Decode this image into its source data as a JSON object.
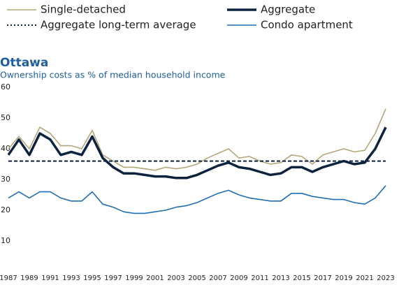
{
  "chart_data": {
    "type": "line",
    "title": "Ottawa",
    "subtitle": "Ownership costs as % of median household income",
    "x": [
      1987,
      1988,
      1989,
      1990,
      1991,
      1992,
      1993,
      1994,
      1995,
      1996,
      1997,
      1998,
      1999,
      2000,
      2001,
      2002,
      2003,
      2004,
      2005,
      2006,
      2007,
      2008,
      2009,
      2010,
      2011,
      2012,
      2013,
      2014,
      2015,
      2016,
      2017,
      2018,
      2019,
      2020,
      2021,
      2022,
      2023
    ],
    "series": [
      {
        "name": "Single-detached",
        "color": "#b5a67a",
        "width": 1.6,
        "values": [
          40,
          44,
          40,
          47,
          45,
          41,
          41,
          40,
          46,
          38,
          36,
          34,
          34,
          33.5,
          33,
          34,
          33.5,
          34,
          35,
          37,
          38.5,
          40,
          37,
          37.5,
          36,
          35,
          35.5,
          38,
          37.5,
          35,
          38,
          39,
          40,
          39,
          39.5,
          45,
          53
        ]
      },
      {
        "name": "Aggregate",
        "color": "#0c2340",
        "width": 3.5,
        "values": [
          38,
          43,
          38,
          45,
          43,
          38,
          39,
          38,
          44,
          37,
          34,
          32,
          32,
          31.5,
          31,
          31,
          30.5,
          30.5,
          31.5,
          33,
          34.5,
          35.5,
          34,
          33.5,
          32.5,
          31.5,
          32,
          34,
          34,
          32.5,
          34,
          35,
          36,
          35,
          35.5,
          40,
          47
        ]
      },
      {
        "name": "Condo apartment",
        "color": "#1f6fb5",
        "width": 1.6,
        "values": [
          24,
          26,
          24,
          26,
          26,
          24,
          23,
          23,
          26,
          22,
          21,
          19.5,
          19,
          19,
          19.5,
          20,
          21,
          21.5,
          22.5,
          24,
          25.5,
          26.5,
          25,
          24,
          23.5,
          23,
          23,
          25.5,
          25.5,
          24.5,
          24,
          23.5,
          23.5,
          22.5,
          22,
          24,
          28
        ]
      }
    ],
    "reference_line": {
      "name": "Aggregate long-term average",
      "value": 36,
      "color": "#0c2340"
    },
    "xlim": [
      1987,
      2023
    ],
    "xticks": [
      1987,
      1989,
      1991,
      1993,
      1995,
      1997,
      1999,
      2001,
      2003,
      2005,
      2007,
      2009,
      2011,
      2013,
      2015,
      2017,
      2019,
      2021,
      2023
    ],
    "ylim": [
      0,
      60
    ],
    "yticks": [
      10,
      20,
      30,
      40,
      50,
      60
    ],
    "grid": false
  }
}
